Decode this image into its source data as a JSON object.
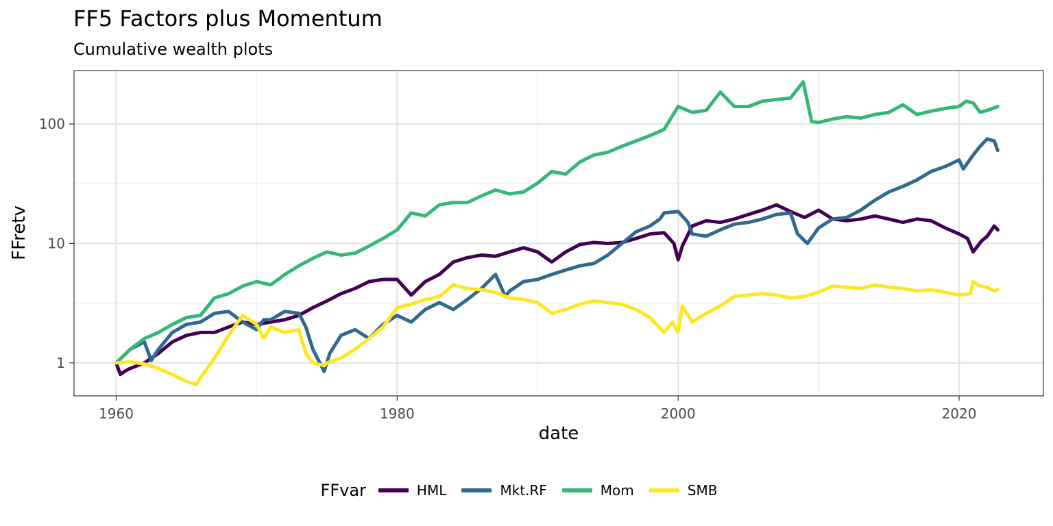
{
  "chart_data": {
    "type": "line",
    "title": "FF5 Factors plus Momentum",
    "subtitle": "Cumulative wealth plots",
    "xlabel": "date",
    "ylabel": "FFretv",
    "x_scale": "date",
    "y_scale": "log10",
    "xlim": [
      1957,
      2026
    ],
    "ylim": [
      0.53,
      280
    ],
    "x_ticks": [
      {
        "value": 1960,
        "label": "1960"
      },
      {
        "value": 1980,
        "label": "1980"
      },
      {
        "value": 2000,
        "label": "2000"
      },
      {
        "value": 2020,
        "label": "2020"
      }
    ],
    "y_ticks": [
      {
        "value": 1,
        "label": "1"
      },
      {
        "value": 10,
        "label": "10"
      },
      {
        "value": 100,
        "label": "100"
      }
    ],
    "grid": true,
    "legend_position": "bottom",
    "legend_title": "FFvar",
    "series": [
      {
        "name": "HML",
        "color": "#440154",
        "x": [
          1960,
          1960.3,
          1960.6,
          1961,
          1962,
          1963,
          1964,
          1965,
          1966,
          1967,
          1968,
          1969,
          1970,
          1971,
          1972,
          1973,
          1974,
          1975,
          1976,
          1977,
          1978,
          1979,
          1980,
          1981,
          1982,
          1983,
          1984,
          1985,
          1986,
          1987,
          1988,
          1989,
          1990,
          1991,
          1992,
          1993,
          1994,
          1995,
          1996,
          1997,
          1998,
          1999,
          1999.7,
          2000,
          2000.3,
          2001,
          2002,
          2003,
          2004,
          2005,
          2006,
          2007,
          2008,
          2009,
          2010,
          2011,
          2012,
          2013,
          2014,
          2015,
          2016,
          2017,
          2018,
          2019,
          2020,
          2020.6,
          2021,
          2021.6,
          2022,
          2022.5,
          2022.75
        ],
        "y": [
          1.0,
          0.8,
          0.85,
          0.9,
          1.0,
          1.2,
          1.5,
          1.7,
          1.8,
          1.8,
          2.0,
          2.2,
          2.1,
          2.2,
          2.3,
          2.5,
          2.9,
          3.3,
          3.8,
          4.2,
          4.8,
          5.0,
          5.0,
          3.7,
          4.8,
          5.5,
          7.0,
          7.6,
          8.0,
          7.8,
          8.5,
          9.2,
          8.5,
          7.0,
          8.5,
          9.8,
          10.2,
          10.0,
          10.2,
          11.0,
          12.0,
          12.3,
          10.0,
          7.3,
          9.5,
          14.0,
          15.5,
          15.0,
          16.0,
          17.5,
          19.0,
          21.0,
          18.5,
          16.5,
          19.0,
          16.0,
          15.5,
          16.0,
          17.0,
          16.0,
          15.0,
          16.0,
          15.5,
          13.5,
          12.0,
          11.0,
          8.5,
          10.5,
          11.5,
          14.0,
          13.0
        ]
      },
      {
        "name": "Mkt.RF",
        "color": "#31688E",
        "x": [
          1960,
          1961,
          1962,
          1962.5,
          1963,
          1964,
          1965,
          1966,
          1967,
          1968,
          1969,
          1970,
          1970.5,
          1971,
          1972,
          1973,
          1973.5,
          1974,
          1974.8,
          1975.2,
          1976,
          1977,
          1978,
          1979,
          1980,
          1981,
          1982,
          1983,
          1984,
          1985,
          1986,
          1987,
          1987.7,
          1988,
          1989,
          1990,
          1991,
          1992,
          1993,
          1994,
          1995,
          1996,
          1997,
          1998,
          1998.7,
          1999,
          2000,
          2000.7,
          2001,
          2002,
          2003,
          2004,
          2005,
          2006,
          2007,
          2008,
          2008.5,
          2009.2,
          2010,
          2011,
          2012,
          2013,
          2014,
          2015,
          2016,
          2017,
          2018,
          2019,
          2020,
          2020.3,
          2021,
          2021.5,
          2022,
          2022.5,
          2022.75
        ],
        "y": [
          1.0,
          1.3,
          1.5,
          1.05,
          1.3,
          1.8,
          2.1,
          2.2,
          2.6,
          2.7,
          2.2,
          1.9,
          2.3,
          2.3,
          2.7,
          2.6,
          2.0,
          1.3,
          0.85,
          1.2,
          1.7,
          1.9,
          1.6,
          2.1,
          2.5,
          2.2,
          2.8,
          3.2,
          2.8,
          3.4,
          4.2,
          5.5,
          3.6,
          4.0,
          4.8,
          5.0,
          5.5,
          6.0,
          6.5,
          6.8,
          8.0,
          10.0,
          12.5,
          14.0,
          16.0,
          18.0,
          18.5,
          15.0,
          12.0,
          11.5,
          13.0,
          14.5,
          15.0,
          16.0,
          17.5,
          18.0,
          12.0,
          10.0,
          13.5,
          16.0,
          16.5,
          19.0,
          23.0,
          27.0,
          30.0,
          34.0,
          40.0,
          44.0,
          50.0,
          42.0,
          55.0,
          65.0,
          75.0,
          72.0,
          60.0
        ]
      },
      {
        "name": "Mom",
        "color": "#35B779",
        "x": [
          1960,
          1961,
          1962,
          1963,
          1964,
          1965,
          1966,
          1967,
          1968,
          1969,
          1970,
          1971,
          1972,
          1973,
          1974,
          1975,
          1976,
          1977,
          1978,
          1979,
          1980,
          1981,
          1982,
          1983,
          1984,
          1985,
          1986,
          1987,
          1988,
          1989,
          1990,
          1991,
          1992,
          1993,
          1994,
          1995,
          1996,
          1997,
          1998,
          1999,
          2000,
          2001,
          2002,
          2003,
          2004,
          2005,
          2006,
          2007,
          2008,
          2008.9,
          2009.5,
          2010,
          2011,
          2012,
          2013,
          2014,
          2015,
          2016,
          2017,
          2018,
          2019,
          2020,
          2020.5,
          2021,
          2021.5,
          2022,
          2022.75
        ],
        "y": [
          1.0,
          1.3,
          1.6,
          1.8,
          2.1,
          2.4,
          2.5,
          3.5,
          3.8,
          4.4,
          4.8,
          4.5,
          5.5,
          6.5,
          7.5,
          8.5,
          8.0,
          8.3,
          9.5,
          11.0,
          13.0,
          18.0,
          17.0,
          21.0,
          22.0,
          22.0,
          25.0,
          28.0,
          26.0,
          27.0,
          32.0,
          40.0,
          38.0,
          48.0,
          55.0,
          58.0,
          65.0,
          72.0,
          80.0,
          90.0,
          140.0,
          125.0,
          130.0,
          185.0,
          140.0,
          140.0,
          155.0,
          160.0,
          165.0,
          225.0,
          105.0,
          103.0,
          110.0,
          115.0,
          112.0,
          120.0,
          125.0,
          145.0,
          120.0,
          128.0,
          135.0,
          140.0,
          155.0,
          150.0,
          125.0,
          130.0,
          140.0
        ]
      },
      {
        "name": "SMB",
        "color": "#FDE725",
        "x": [
          1960,
          1961,
          1962,
          1963,
          1964,
          1965,
          1965.7,
          1966,
          1967,
          1968,
          1969,
          1970,
          1970.5,
          1971,
          1972,
          1973,
          1973.5,
          1974,
          1974.8,
          1975,
          1976,
          1977,
          1978,
          1979,
          1980,
          1981,
          1982,
          1983,
          1984,
          1985,
          1986,
          1987,
          1988,
          1989,
          1990,
          1991,
          1992,
          1993,
          1994,
          1995,
          1996,
          1997,
          1998,
          1999,
          1999.6,
          2000,
          2000.3,
          2001,
          2002,
          2003,
          2004,
          2005,
          2006,
          2007,
          2008,
          2009,
          2010,
          2011,
          2012,
          2013,
          2014,
          2015,
          2016,
          2017,
          2018,
          2019,
          2020,
          2020.8,
          2021,
          2021.5,
          2022,
          2022.5,
          2022.75
        ],
        "y": [
          1.0,
          1.02,
          0.98,
          0.9,
          0.8,
          0.7,
          0.66,
          0.75,
          1.1,
          1.7,
          2.5,
          2.1,
          1.6,
          2.0,
          1.8,
          1.9,
          1.2,
          1.0,
          0.95,
          1.0,
          1.1,
          1.3,
          1.6,
          2.0,
          2.9,
          3.1,
          3.4,
          3.6,
          4.5,
          4.2,
          4.1,
          3.9,
          3.5,
          3.4,
          3.2,
          2.6,
          2.8,
          3.1,
          3.3,
          3.2,
          3.1,
          2.8,
          2.4,
          1.8,
          2.2,
          1.8,
          3.0,
          2.2,
          2.6,
          3.0,
          3.6,
          3.7,
          3.8,
          3.7,
          3.5,
          3.6,
          3.9,
          4.4,
          4.3,
          4.2,
          4.5,
          4.3,
          4.2,
          4.0,
          4.1,
          3.9,
          3.7,
          3.8,
          4.8,
          4.4,
          4.3,
          4.0,
          4.1
        ]
      }
    ]
  }
}
